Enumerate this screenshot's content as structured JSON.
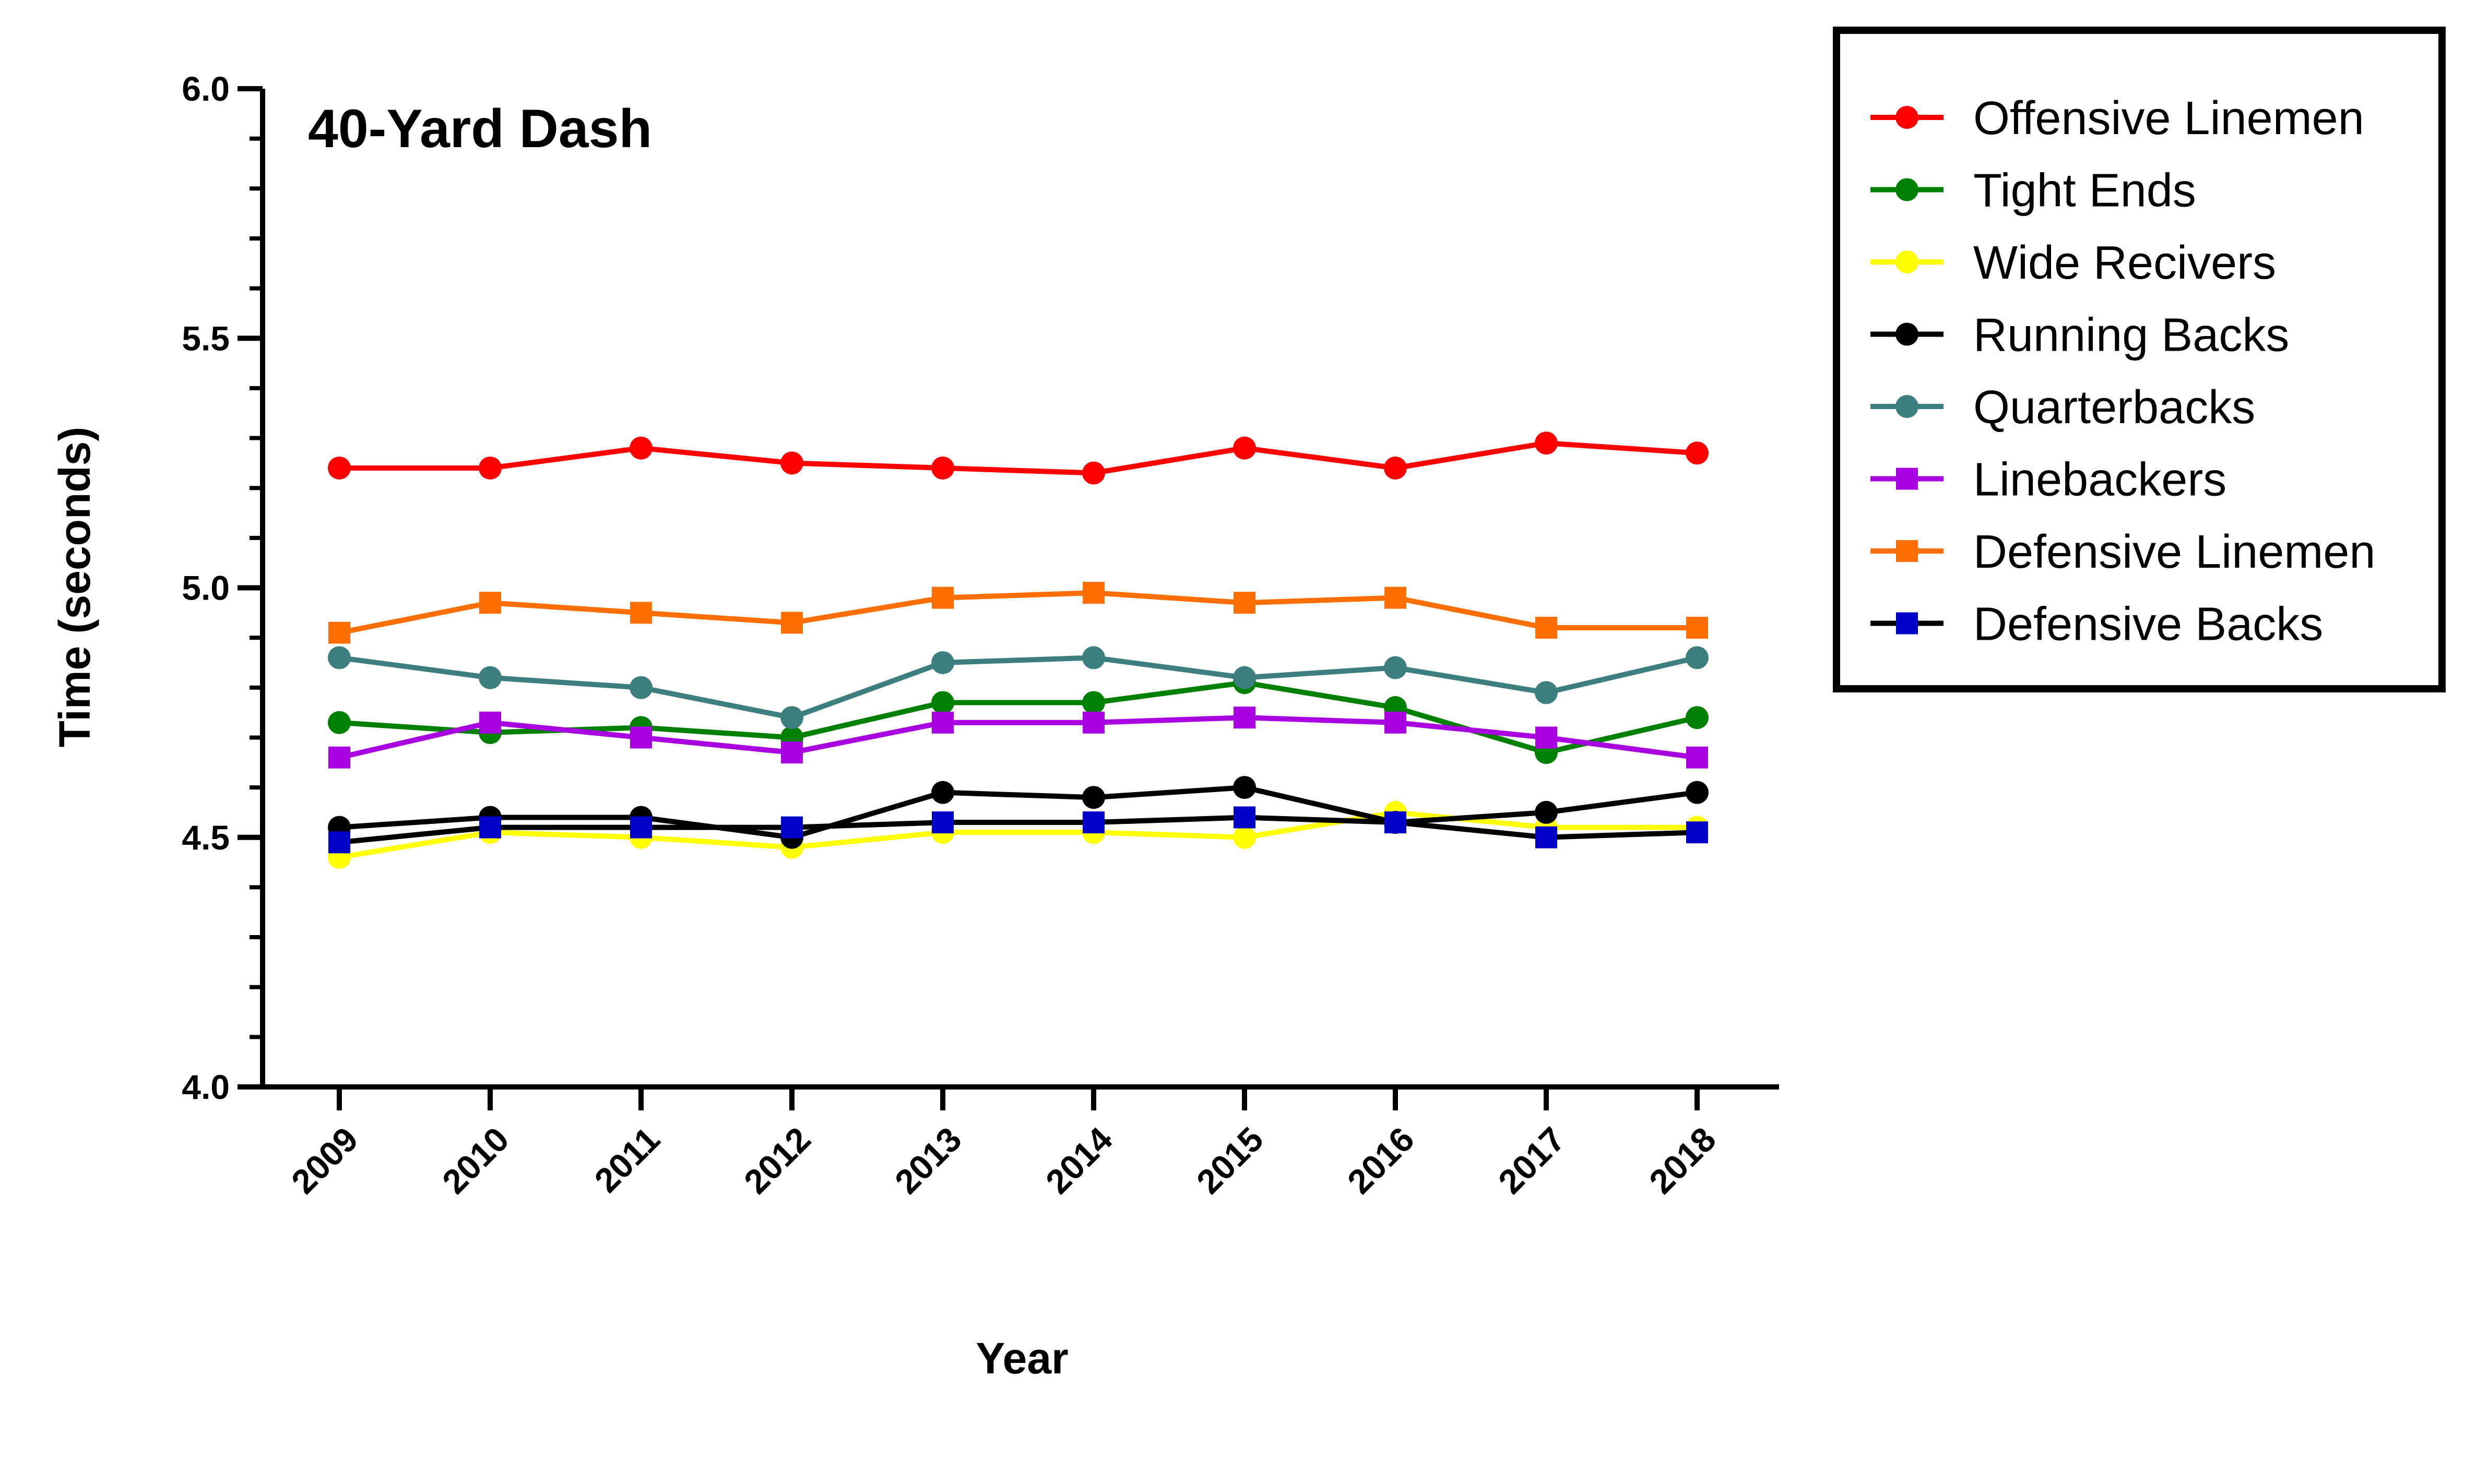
{
  "chart_data": {
    "type": "line",
    "title": "40-Yard Dash",
    "xlabel": "Year",
    "ylabel": "Time (seconds)",
    "ylim": [
      4.0,
      6.0
    ],
    "yticks": [
      "4.0",
      "4.5",
      "5.0",
      "5.5",
      "6.0"
    ],
    "categories": [
      "2009",
      "2010",
      "2011",
      "2012",
      "2013",
      "2014",
      "2015",
      "2016",
      "2017",
      "2018"
    ],
    "grid": false,
    "legend_position": "top-right",
    "series": [
      {
        "name": "Offensive Linemen",
        "color": "#ff0000",
        "marker": "circle",
        "values": [
          5.24,
          5.24,
          5.28,
          5.25,
          5.24,
          5.23,
          5.28,
          5.24,
          5.29,
          5.27
        ]
      },
      {
        "name": "Tight Ends",
        "color": "#008000",
        "marker": "circle",
        "values": [
          4.73,
          4.71,
          4.72,
          4.7,
          4.77,
          4.77,
          4.81,
          4.76,
          4.67,
          4.74
        ]
      },
      {
        "name": "Wide Recivers",
        "color": "#ffff00",
        "marker": "circle",
        "values": [
          4.46,
          4.51,
          4.5,
          4.48,
          4.51,
          4.51,
          4.5,
          4.55,
          4.52,
          4.52
        ]
      },
      {
        "name": "Running Backs",
        "color": "#000000",
        "marker": "circle",
        "values": [
          4.52,
          4.54,
          4.54,
          4.5,
          4.59,
          4.58,
          4.6,
          4.53,
          4.55,
          4.59
        ]
      },
      {
        "name": "Quarterbacks",
        "color": "#3d7f7f",
        "marker": "circle",
        "values": [
          4.86,
          4.82,
          4.8,
          4.74,
          4.85,
          4.86,
          4.82,
          4.84,
          4.79,
          4.86
        ]
      },
      {
        "name": "Linebackers",
        "color": "#a800e0",
        "marker": "square",
        "values": [
          4.66,
          4.73,
          4.7,
          4.67,
          4.73,
          4.73,
          4.74,
          4.73,
          4.7,
          4.66
        ]
      },
      {
        "name": "Defensive Linemen",
        "color": "#ff6e00",
        "marker": "square",
        "values": [
          4.91,
          4.97,
          4.95,
          4.93,
          4.98,
          4.99,
          4.97,
          4.98,
          4.92,
          4.92
        ]
      },
      {
        "name": "Defensive Backs",
        "color": "#0000c8",
        "line_color": "#000000",
        "marker": "square",
        "values": [
          4.49,
          4.52,
          4.52,
          4.52,
          4.53,
          4.53,
          4.54,
          4.53,
          4.5,
          4.51
        ]
      }
    ]
  }
}
